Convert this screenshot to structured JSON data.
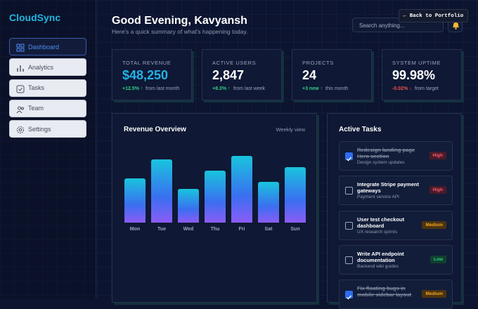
{
  "sidebar": {
    "brand": "CloudSync",
    "nav": [
      "Dashboard",
      "Analytics",
      "Tasks",
      "Team",
      "Settings"
    ],
    "active": 0
  },
  "header": {
    "title": "Good Evening, Kavyansh",
    "subtitle": "Here's a quick summary of what's happening today.",
    "search_placeholder": "Search anything...",
    "back_button": "← Back to Portfolio"
  },
  "stats": [
    {
      "label": "TOTAL REVENUE",
      "value": "$48,250",
      "change": "+12.5% ↑",
      "note": "from last month",
      "trend": "up"
    },
    {
      "label": "ACTIVE USERS",
      "value": "2,847",
      "change": "+8.3% ↑",
      "note": "from last week",
      "trend": "up"
    },
    {
      "label": "PROJECTS",
      "value": "24",
      "change": "+3 new ↑",
      "note": "this month",
      "trend": "up"
    },
    {
      "label": "SYSTEM UPTIME",
      "value": "99.98%",
      "change": "-0.02% ↓",
      "note": "from target",
      "trend": "down"
    }
  ],
  "revenue_chart": {
    "type": "bar",
    "title": "Revenue Overview",
    "period": "Weekly view",
    "categories": [
      "Mon",
      "Tue",
      "Wed",
      "Thu",
      "Fri",
      "Sat",
      "Sun"
    ],
    "values": [
      63,
      90,
      48,
      74,
      95,
      58,
      79
    ]
  },
  "tasks": {
    "title": "Active Tasks",
    "items": [
      {
        "title": "Redesign landing page Hero section",
        "subtitle": "Design system updates",
        "priority": "High",
        "done": true
      },
      {
        "title": "Integrate Stripe payment gateways",
        "subtitle": "Payment service API",
        "priority": "High",
        "done": false
      },
      {
        "title": "User test checkout dashboard",
        "subtitle": "UX research sprints",
        "priority": "Medium",
        "done": false
      },
      {
        "title": "Write API endpoint documentation",
        "subtitle": "Backend wiki guides",
        "priority": "Low",
        "done": false
      },
      {
        "title": "Fix floating bugs in mobile sidebar layout",
        "subtitle": "",
        "priority": "Medium",
        "done": true
      }
    ]
  }
}
